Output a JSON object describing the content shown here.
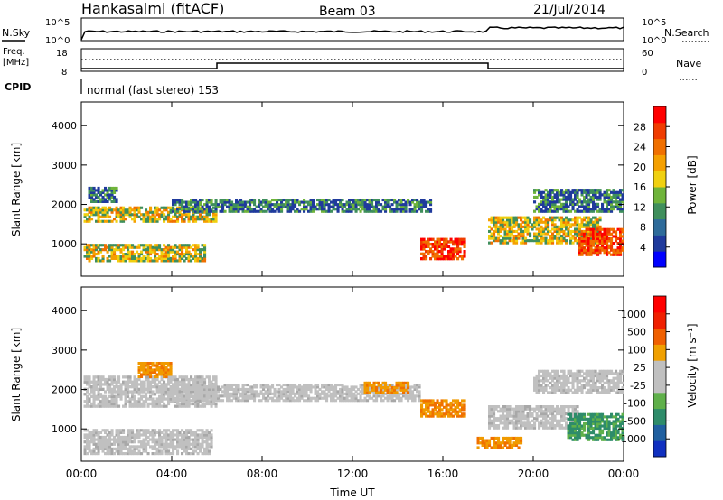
{
  "header": {
    "station": "Hankasalmi (fitACF)",
    "beam": "Beam 03",
    "date": "21/Jul/2014"
  },
  "top_panels": {
    "nsky_label": "N.Sky",
    "nsearch_label": "N.Search",
    "nsky_ticks": [
      "10^5",
      "10^0"
    ],
    "nsearch_ticks": [
      "10^5",
      "10^0"
    ],
    "freq_label_1": "Freq.",
    "freq_label_2": "[MHz]",
    "freq_ticks": [
      "18",
      "8"
    ],
    "nave_label": "Nave",
    "nave_ticks": [
      "60",
      "0"
    ],
    "cpid_label": "CPID",
    "cpid_text": "normal (fast stereo) 153"
  },
  "chart_data": [
    {
      "type": "heatmap",
      "title": "",
      "ylabel": "Slant Range [km]",
      "xlabel": "",
      "x_ticks": [
        "00:00",
        "04:00",
        "08:00",
        "12:00",
        "16:00",
        "20:00",
        "00:00"
      ],
      "y_ticks": [
        1000,
        2000,
        3000,
        4000
      ],
      "ylim": [
        180,
        4600
      ],
      "colorbar": {
        "label": "Power [dB]",
        "ticks": [
          "28",
          "24",
          "20",
          "16",
          "12",
          "8",
          "4"
        ],
        "colors": [
          "#0000ff",
          "#1f3a9c",
          "#2e6b9a",
          "#3f8f5c",
          "#6fb43a",
          "#f0d010",
          "#f5a000",
          "#f07000",
          "#f03c00",
          "#ff0000"
        ]
      },
      "bands": [
        {
          "t0": 0.3,
          "t1": 1.6,
          "r0": 2050,
          "r1": 2450,
          "level": "mid"
        },
        {
          "t0": 0.1,
          "t1": 6.0,
          "r0": 1550,
          "r1": 1950,
          "level": "high"
        },
        {
          "t0": 0.1,
          "t1": 5.5,
          "r0": 550,
          "r1": 1000,
          "level": "high"
        },
        {
          "t0": 4.0,
          "t1": 15.5,
          "r0": 1800,
          "r1": 2150,
          "level": "mid"
        },
        {
          "t0": 15.0,
          "t1": 17.0,
          "r0": 600,
          "r1": 1150,
          "level": "veryhigh"
        },
        {
          "t0": 18.0,
          "t1": 23.0,
          "r0": 1000,
          "r1": 1700,
          "level": "high"
        },
        {
          "t0": 22.0,
          "t1": 24.0,
          "r0": 700,
          "r1": 1400,
          "level": "veryhigh"
        },
        {
          "t0": 20.0,
          "t1": 24.0,
          "r0": 1800,
          "r1": 2400,
          "level": "mid"
        }
      ]
    },
    {
      "type": "heatmap",
      "title": "",
      "ylabel": "Slant Range [km]",
      "xlabel": "Time UT",
      "x_ticks": [
        "00:00",
        "04:00",
        "08:00",
        "12:00",
        "16:00",
        "20:00",
        "00:00"
      ],
      "y_ticks": [
        1000,
        2000,
        3000,
        4000
      ],
      "ylim": [
        180,
        4600
      ],
      "colorbar": {
        "label": "Velocity [m s⁻¹]",
        "ticks": [
          "1000",
          "500",
          "100",
          "25",
          "-25",
          "-100",
          "-500",
          "-1000"
        ],
        "colors": [
          "#1030c0",
          "#2060a0",
          "#2e8c6a",
          "#5fb04a",
          "#c0c0c0",
          "#c0c0c0",
          "#f0a000",
          "#f06000",
          "#f02000",
          "#ff0000"
        ]
      },
      "bands": [
        {
          "t0": 0.1,
          "t1": 6.0,
          "r0": 1550,
          "r1": 2350,
          "level": "grey"
        },
        {
          "t0": 0.1,
          "t1": 5.8,
          "r0": 350,
          "r1": 1000,
          "level": "grey"
        },
        {
          "t0": 2.5,
          "t1": 4.0,
          "r0": 2300,
          "r1": 2700,
          "level": "orange"
        },
        {
          "t0": 4.0,
          "t1": 15.0,
          "r0": 1700,
          "r1": 2150,
          "level": "grey"
        },
        {
          "t0": 12.5,
          "t1": 14.5,
          "r0": 1900,
          "r1": 2200,
          "level": "orange"
        },
        {
          "t0": 15.0,
          "t1": 17.0,
          "r0": 1300,
          "r1": 1750,
          "level": "orange"
        },
        {
          "t0": 18.0,
          "t1": 22.0,
          "r0": 1000,
          "r1": 1600,
          "level": "grey"
        },
        {
          "t0": 21.5,
          "t1": 24.0,
          "r0": 700,
          "r1": 1400,
          "level": "green"
        },
        {
          "t0": 17.5,
          "t1": 19.5,
          "r0": 500,
          "r1": 800,
          "level": "orange"
        },
        {
          "t0": 20.0,
          "t1": 24.0,
          "r0": 1900,
          "r1": 2500,
          "level": "grey"
        }
      ]
    }
  ]
}
